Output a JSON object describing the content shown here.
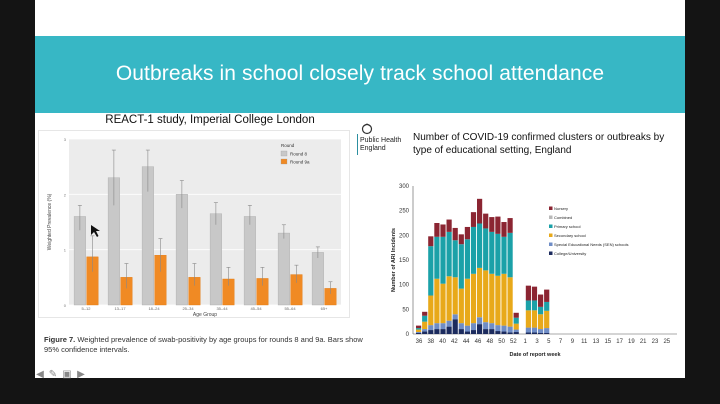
{
  "slide": {
    "title": "Outbreaks in school closely track school attendance",
    "left_heading": "REACT-1 study, Imperial College London",
    "left_caption_bold": "Figure 7.",
    "left_caption_text": " Weighted prevalence of swab-positivity by age groups for rounds 8 and 9a. Bars show 95% confidence intervals.",
    "phe_logo_line1": "Public Health",
    "phe_logo_line2": "England",
    "right_heading": "Number of COVID-19 confirmed clusters or outbreaks by type of educational setting, England"
  },
  "chart_data": [
    {
      "type": "bar",
      "title": "",
      "xlabel": "Age Group",
      "ylabel": "Weighted Prevalence (%)",
      "ylim": [
        0,
        3
      ],
      "yticks": [
        "0",
        "1",
        "2",
        "3"
      ],
      "legend_title": "Round",
      "legend_position": "top-right",
      "grid": true,
      "categories": [
        "5–12",
        "13–17",
        "18–24",
        "25–34",
        "35–44",
        "45–54",
        "55–64",
        "65+"
      ],
      "series": [
        {
          "name": "Round 8",
          "color": "#c8c8c8",
          "values": [
            1.6,
            2.3,
            2.5,
            2.0,
            1.65,
            1.6,
            1.3,
            0.95
          ],
          "ci_low": [
            1.35,
            1.8,
            2.05,
            1.75,
            1.45,
            1.45,
            1.2,
            0.85
          ],
          "ci_high": [
            1.8,
            2.8,
            2.8,
            2.25,
            1.85,
            1.8,
            1.45,
            1.05
          ]
        },
        {
          "name": "Round 9a",
          "color": "#f08a24",
          "values": [
            0.87,
            0.5,
            0.9,
            0.5,
            0.47,
            0.48,
            0.55,
            0.3
          ],
          "ci_low": [
            0.6,
            0.3,
            0.6,
            0.35,
            0.35,
            0.35,
            0.4,
            0.2
          ],
          "ci_high": [
            1.25,
            0.75,
            1.2,
            0.75,
            0.68,
            0.68,
            0.72,
            0.42
          ]
        }
      ]
    },
    {
      "type": "bar",
      "stacked": true,
      "title": "",
      "xlabel": "Date of report week",
      "ylabel": "Number of ARI Incidents",
      "ylim": [
        0,
        300
      ],
      "yticks": [
        "0",
        "25",
        "50",
        "75",
        "100",
        "125",
        "150",
        "175",
        "200",
        "225",
        "250",
        "275",
        "300"
      ],
      "xticks": [
        "36",
        "38",
        "40",
        "42",
        "44",
        "46",
        "48",
        "50",
        "52",
        "1",
        "3",
        "5",
        "7",
        "9",
        "11",
        "13",
        "15",
        "17",
        "19",
        "21",
        "23",
        "25"
      ],
      "legend_position": "top-right",
      "categories": [
        "36",
        "37",
        "38",
        "39",
        "40",
        "41",
        "42",
        "43",
        "44",
        "45",
        "46",
        "47",
        "48",
        "49",
        "50",
        "51",
        "52",
        "53",
        "1",
        "2",
        "3",
        "4"
      ],
      "series": [
        {
          "name": "College/University",
          "color": "#1c2b5e",
          "values": [
            2,
            5,
            8,
            10,
            10,
            15,
            30,
            10,
            5,
            8,
            20,
            10,
            10,
            6,
            5,
            3,
            4,
            0,
            3,
            3,
            2,
            2
          ]
        },
        {
          "name": "Special Educational Needs (SEN) schools",
          "color": "#6f8dc6",
          "values": [
            2,
            5,
            10,
            12,
            12,
            12,
            10,
            12,
            12,
            14,
            14,
            14,
            12,
            12,
            12,
            12,
            5,
            0,
            10,
            10,
            8,
            10
          ]
        },
        {
          "name": "Secondary school",
          "color": "#e8a91a",
          "values": [
            5,
            15,
            60,
            90,
            80,
            90,
            75,
            70,
            95,
            100,
            100,
            105,
            100,
            100,
            105,
            100,
            12,
            0,
            35,
            35,
            30,
            35
          ]
        },
        {
          "name": "Primary school",
          "color": "#1ba1a8",
          "values": [
            3,
            12,
            100,
            85,
            95,
            90,
            75,
            90,
            80,
            95,
            90,
            85,
            85,
            85,
            75,
            90,
            12,
            0,
            20,
            20,
            15,
            18
          ]
        },
        {
          "name": "Combined",
          "color": "#b9b9b9",
          "values": [
            0,
            0,
            0,
            0,
            0,
            0,
            0,
            0,
            0,
            0,
            0,
            0,
            0,
            0,
            0,
            0,
            0,
            0,
            0,
            0,
            0,
            0
          ]
        },
        {
          "name": "Nursery",
          "color": "#8b2532",
          "values": [
            5,
            8,
            20,
            28,
            25,
            25,
            25,
            20,
            25,
            30,
            50,
            30,
            30,
            35,
            30,
            30,
            10,
            0,
            30,
            28,
            25,
            25
          ]
        }
      ]
    }
  ],
  "ui": {
    "prev_icon": "arrow-left-icon",
    "pen_icon": "pen-icon",
    "slides_icon": "slides-icon",
    "next_icon": "arrow-right-icon"
  }
}
